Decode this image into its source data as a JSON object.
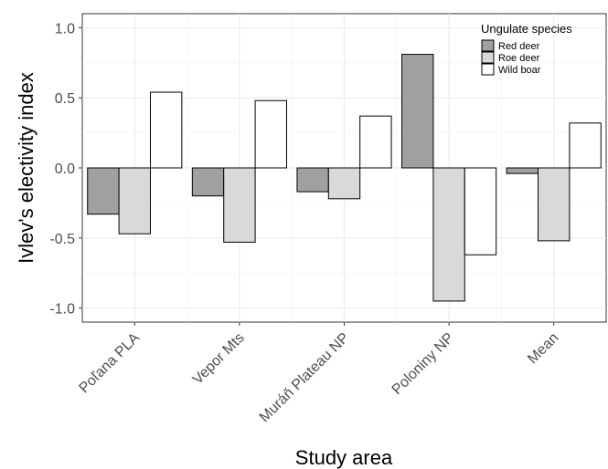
{
  "chart_data": {
    "type": "bar",
    "xlabel": "Study area",
    "ylabel": "Ivlev's electivity index",
    "ylim": [
      -1.1,
      1.1
    ],
    "yticks": [
      -1.0,
      -0.5,
      0.0,
      0.5,
      1.0
    ],
    "ytick_labels": [
      "-1.0",
      "-0.5",
      "0.0",
      "0.5",
      "1.0"
    ],
    "grid": true,
    "legend_title": "Ungulate species",
    "legend_position": "top-right",
    "categories": [
      "Poľana PLA",
      "Vepor Mts",
      "Muráň Plateau NP",
      "Poloniny NP",
      "Mean"
    ],
    "series": [
      {
        "name": "Red deer",
        "color": "#a0a0a0",
        "values": [
          -0.33,
          -0.2,
          -0.17,
          0.81,
          -0.04
        ]
      },
      {
        "name": "Roe deer",
        "color": "#d9d9d9",
        "values": [
          -0.47,
          -0.53,
          -0.22,
          -0.95,
          -0.52
        ]
      },
      {
        "name": "Wild boar",
        "color": "#ffffff",
        "values": [
          0.54,
          0.48,
          0.37,
          -0.62,
          0.32
        ]
      }
    ]
  }
}
